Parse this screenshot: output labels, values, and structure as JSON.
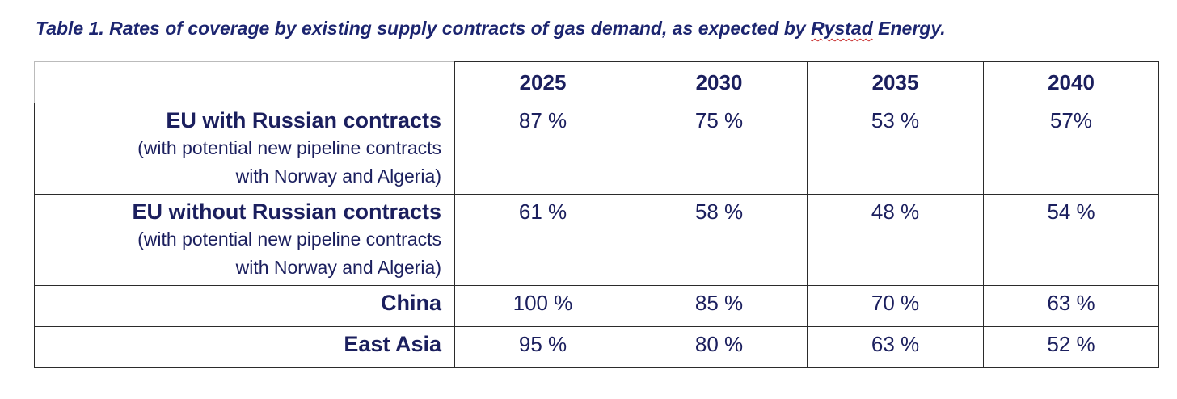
{
  "caption": {
    "prefix": "Table 1. Rates of coverage by existing supply contracts of gas demand, as expected by ",
    "underlined": "Rystad",
    "suffix": " Energy."
  },
  "table": {
    "columns": [
      "2025",
      "2030",
      "2035",
      "2040"
    ],
    "rows": [
      {
        "name": "EU with Russian contracts",
        "note_line1": "(with potential new pipeline contracts",
        "note_line2": "with Norway and Algeria)",
        "values": [
          "87 %",
          "75 %",
          "53 %",
          "57%"
        ]
      },
      {
        "name": "EU without Russian contracts",
        "note_line1": "(with potential new pipeline contracts",
        "note_line2": "with Norway and Algeria)",
        "values": [
          "61 %",
          "58 %",
          "48 %",
          "54 %"
        ]
      },
      {
        "name": "China",
        "values": [
          "100 %",
          "85 %",
          "70 %",
          "63 %"
        ]
      },
      {
        "name": "East Asia",
        "values": [
          "95 %",
          "80 %",
          "63 %",
          "52 %"
        ]
      }
    ]
  }
}
